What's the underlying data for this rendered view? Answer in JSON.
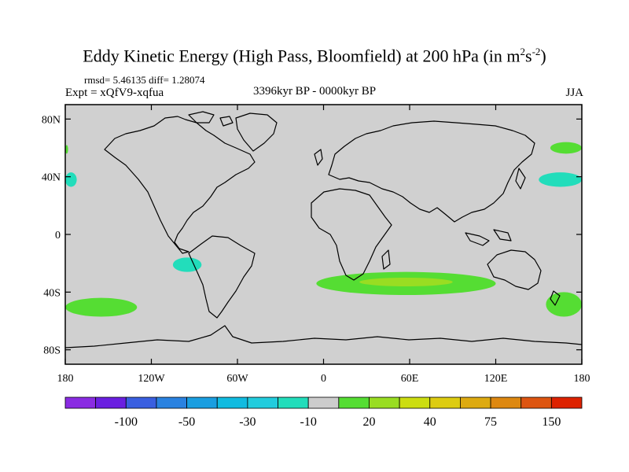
{
  "title": {
    "main": "Eddy Kinetic Energy (High Pass, Bloomfield) at 200 hPa (in m",
    "sup1": "2",
    "mid": "s",
    "sup2": "-2",
    "end": ")"
  },
  "subtitles": {
    "stats": "rmsd= 5.46135 diff= 1.28074",
    "expt": "Expt = xQfV9-xqfua",
    "period": "3396kyr BP - 0000kyr BP",
    "season": "JJA"
  },
  "map": {
    "background_color": "#d0d0d0",
    "coast_color": "#000000",
    "lon_range": [
      -180,
      180
    ],
    "lat_range": [
      -90,
      90
    ],
    "lat_ticks": [
      {
        "value": 80,
        "label": "80N"
      },
      {
        "value": 40,
        "label": "40N"
      },
      {
        "value": 0,
        "label": "0"
      },
      {
        "value": -40,
        "label": "40S"
      },
      {
        "value": -80,
        "label": "80S"
      }
    ],
    "lon_ticks": [
      {
        "value": -180,
        "label": "180"
      },
      {
        "value": -120,
        "label": "120W"
      },
      {
        "value": -60,
        "label": "60W"
      },
      {
        "value": 0,
        "label": "0"
      },
      {
        "value": 60,
        "label": "60E"
      },
      {
        "value": 120,
        "label": "120E"
      },
      {
        "value": 180,
        "label": "180"
      }
    ],
    "anomaly_regions": [
      {
        "name": "north-pacific-positive",
        "color": "#55dd33",
        "lon": [
          158,
          180
        ],
        "lat": [
          56,
          64
        ]
      },
      {
        "name": "north-pacific-positive-west",
        "color": "#55dd33",
        "lon": [
          -180,
          -178
        ],
        "lat": [
          56,
          62
        ]
      },
      {
        "name": "north-pacific-negative",
        "color": "#22ddbb",
        "lon": [
          150,
          180
        ],
        "lat": [
          33,
          43
        ]
      },
      {
        "name": "north-pacific-negative-west",
        "color": "#22ddbb",
        "lon": [
          -180,
          -172
        ],
        "lat": [
          33,
          43
        ]
      },
      {
        "name": "south-pacific-negative",
        "color": "#22ddbb",
        "lon": [
          -105,
          -85
        ],
        "lat": [
          -26,
          -16
        ]
      },
      {
        "name": "southern-ocean-positive",
        "color": "#55dd33",
        "lon": [
          -5,
          120
        ],
        "lat": [
          -42,
          -26
        ]
      },
      {
        "name": "southern-ocean-positive-core",
        "color": "#99dd22",
        "lon": [
          25,
          90
        ],
        "lat": [
          -36,
          -30
        ]
      },
      {
        "name": "south-pacific-positive-west",
        "color": "#55dd33",
        "lon": [
          -180,
          -130
        ],
        "lat": [
          -57,
          -44
        ]
      },
      {
        "name": "south-pacific-positive-east",
        "color": "#55dd33",
        "lon": [
          155,
          180
        ],
        "lat": [
          -57,
          -40
        ]
      }
    ]
  },
  "colorbar": {
    "colors": [
      "#8a2be2",
      "#6a1fe0",
      "#3a5fe0",
      "#2a82e0",
      "#1a9ee0",
      "#11bbe0",
      "#22ccdd",
      "#22ddbb",
      "#cccccc",
      "#55dd33",
      "#99dd22",
      "#ccdd11",
      "#ddcc11",
      "#ddaa11",
      "#dd8811",
      "#dd5511",
      "#dd2200"
    ],
    "labels": [
      "-100",
      "-50",
      "-30",
      "-10",
      "20",
      "40",
      "75",
      "150"
    ]
  }
}
